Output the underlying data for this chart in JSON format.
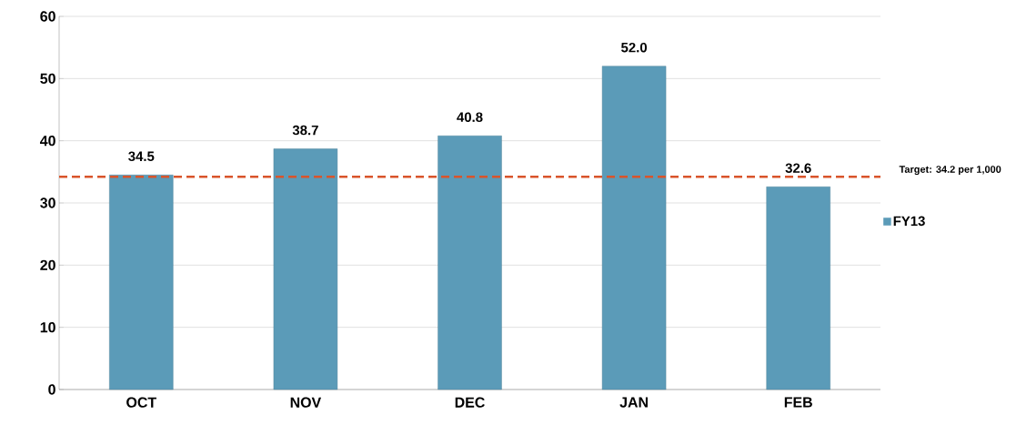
{
  "chart_data": {
    "type": "bar",
    "categories": [
      "OCT",
      "NOV",
      "DEC",
      "JAN",
      "FEB"
    ],
    "series": [
      {
        "name": "FY13",
        "color": "#5b9bb8",
        "values": [
          34.5,
          38.7,
          40.8,
          52.0,
          32.6
        ],
        "value_labels": [
          "34.5",
          "38.7",
          "40.8",
          "52.0",
          "32.6"
        ]
      }
    ],
    "ylim": [
      0,
      60
    ],
    "yticks": [
      0,
      10,
      20,
      30,
      40,
      50,
      60
    ],
    "grid": "y",
    "legend": "right",
    "ref_lines": [
      {
        "axis": "y",
        "value": 34.2,
        "label": "Target: 34.2 per 1,000",
        "color": "#d9542b",
        "line_style": "dashed"
      }
    ]
  }
}
